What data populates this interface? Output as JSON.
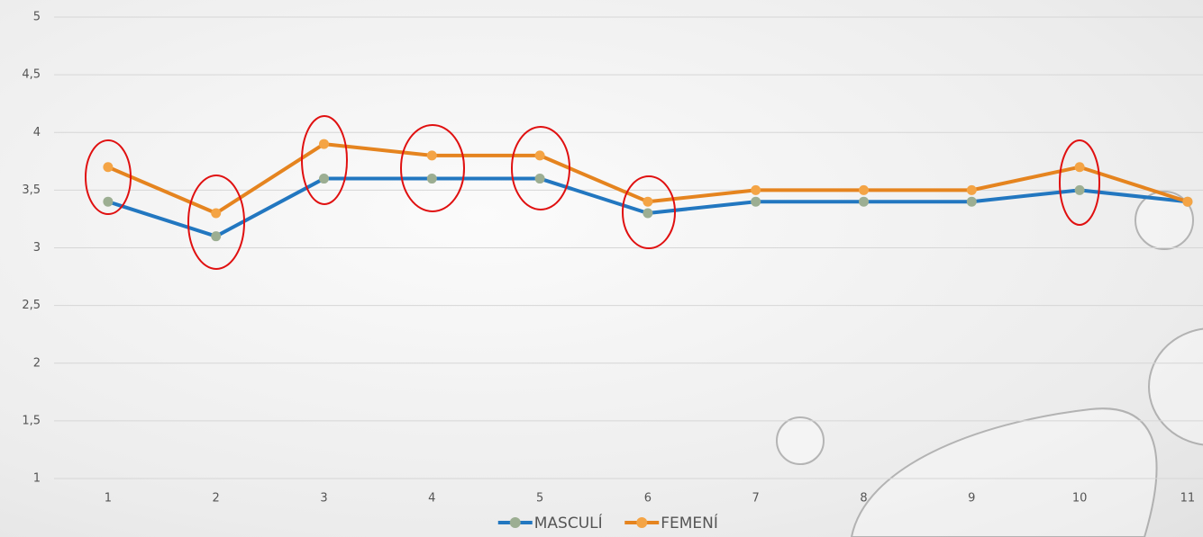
{
  "chart_data": {
    "type": "line",
    "categories": [
      "1",
      "2",
      "3",
      "4",
      "5",
      "6",
      "7",
      "8",
      "9",
      "10",
      "11"
    ],
    "series": [
      {
        "name": "MASCULÍ",
        "color": "#2277c0",
        "marker_color": "#9cae92",
        "values": [
          3.4,
          3.1,
          3.6,
          3.6,
          3.6,
          3.3,
          3.4,
          3.4,
          3.4,
          3.5,
          3.4
        ]
      },
      {
        "name": "FEMENÍ",
        "color": "#e5841f",
        "marker_color": "#f4a445",
        "values": [
          3.7,
          3.3,
          3.9,
          3.8,
          3.8,
          3.4,
          3.5,
          3.5,
          3.5,
          3.7,
          3.4
        ]
      }
    ],
    "ylim": [
      1,
      5
    ],
    "yticks": [
      1,
      {
        "value": 1.5,
        "label": "1,5"
      },
      2,
      {
        "value": 2.5,
        "label": "2,5"
      },
      3,
      {
        "value": 3.5,
        "label": "3,5"
      },
      4,
      {
        "value": 4.5,
        "label": "4,5"
      },
      5
    ],
    "grid": true,
    "legend": "bottom"
  }
}
